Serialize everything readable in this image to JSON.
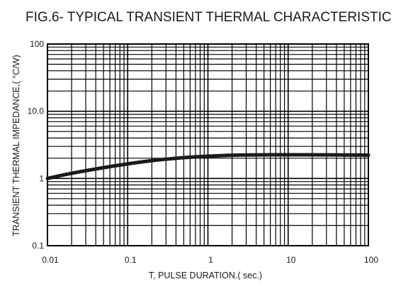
{
  "chart_data": {
    "type": "line",
    "title": "FIG.6- TYPICAL TRANSIENT THERMAL CHARACTERISTIC",
    "xlabel": "T, PULSE DURATION.( sec.)",
    "ylabel": "TRANSIENT THERMAL IMPEDANCE,( °C/W)",
    "x_scale": "log",
    "y_scale": "log",
    "xlim": [
      0.01,
      100
    ],
    "ylim": [
      0.1,
      100
    ],
    "grid": true,
    "x_ticks": [
      {
        "value": 0.01,
        "label": "0.01"
      },
      {
        "value": 0.1,
        "label": "0.1"
      },
      {
        "value": 1,
        "label": "1"
      },
      {
        "value": 10,
        "label": "10"
      },
      {
        "value": 100,
        "label": "100"
      }
    ],
    "y_ticks": [
      {
        "value": 0.1,
        "label": "0.1"
      },
      {
        "value": 1,
        "label": "1"
      },
      {
        "value": 10,
        "label": "10.0"
      },
      {
        "value": 100,
        "label": "100"
      }
    ],
    "series": [
      {
        "color": "#1a1a1a",
        "x": [
          0.01,
          0.02,
          0.05,
          0.1,
          0.2,
          0.5,
          1,
          2,
          5,
          10,
          20,
          50,
          100
        ],
        "y": [
          1.0,
          1.2,
          1.45,
          1.65,
          1.85,
          2.05,
          2.15,
          2.22,
          2.25,
          2.25,
          2.25,
          2.24,
          2.22
        ]
      }
    ]
  }
}
